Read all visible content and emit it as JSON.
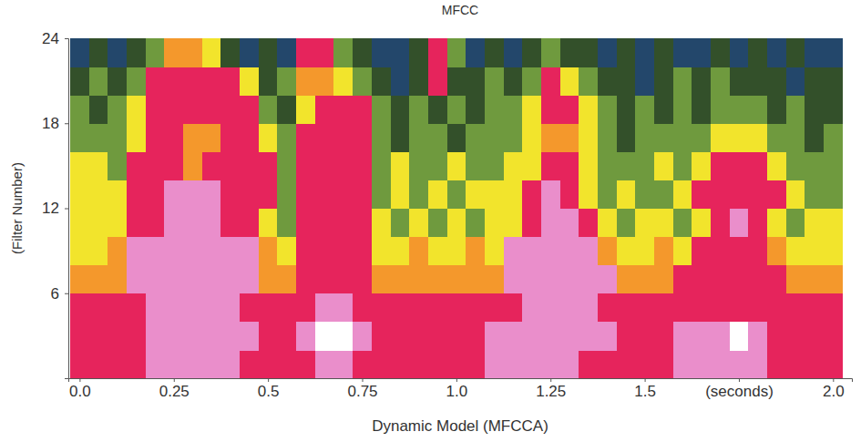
{
  "chart_data": {
    "type": "heatmap",
    "title": "MFCC",
    "y_label": "(Filter Number)",
    "x_label": "Dynamic Model (MFCCA)",
    "x": [
      0,
      0.05,
      0.1,
      0.15,
      0.2,
      0.25,
      0.3,
      0.35,
      0.4,
      0.45,
      0.5,
      0.55,
      0.6,
      0.65,
      0.7,
      0.75,
      0.8,
      0.85,
      0.9,
      0.95,
      1.0,
      1.05,
      1.1,
      1.15,
      1.2,
      1.25,
      1.3,
      1.35,
      1.4,
      1.45,
      1.5,
      1.55,
      1.6,
      1.65,
      1.7,
      1.75,
      1.8,
      1.85,
      1.9,
      1.95,
      2.0
    ],
    "y": [
      1,
      3,
      5,
      7,
      9,
      11,
      13,
      15,
      17,
      19,
      21,
      23
    ],
    "z": [
      [
        5,
        5,
        5,
        5,
        6,
        6,
        6,
        6,
        6,
        5,
        5,
        5,
        5,
        6,
        6,
        5,
        5,
        5,
        5,
        5,
        5,
        5,
        6,
        6,
        6,
        6,
        6,
        5,
        5,
        5,
        5,
        5,
        6,
        6,
        6,
        6,
        6,
        5,
        5,
        5,
        5
      ],
      [
        5,
        5,
        5,
        5,
        6,
        6,
        6,
        6,
        6,
        6,
        5,
        5,
        6,
        7,
        7,
        6,
        5,
        5,
        5,
        5,
        5,
        5,
        6,
        6,
        6,
        6,
        6,
        6,
        6,
        5,
        5,
        5,
        6,
        6,
        6,
        7,
        6,
        5,
        5,
        5,
        5
      ],
      [
        5,
        5,
        5,
        5,
        6,
        6,
        6,
        6,
        6,
        5,
        5,
        5,
        5,
        6,
        6,
        5,
        5,
        5,
        5,
        5,
        5,
        5,
        5,
        5,
        6,
        6,
        6,
        6,
        5,
        5,
        5,
        5,
        5,
        5,
        5,
        5,
        5,
        5,
        5,
        5,
        5
      ],
      [
        4,
        4,
        4,
        6,
        6,
        6,
        6,
        6,
        6,
        6,
        4,
        4,
        5,
        5,
        5,
        5,
        4,
        4,
        4,
        4,
        4,
        4,
        4,
        6,
        6,
        6,
        6,
        6,
        6,
        4,
        4,
        4,
        5,
        5,
        5,
        5,
        5,
        5,
        4,
        4,
        4
      ],
      [
        3,
        3,
        4,
        6,
        6,
        6,
        6,
        6,
        6,
        6,
        4,
        3,
        5,
        5,
        5,
        5,
        3,
        3,
        4,
        3,
        3,
        4,
        3,
        6,
        6,
        6,
        6,
        6,
        4,
        3,
        3,
        4,
        3,
        5,
        5,
        5,
        5,
        4,
        3,
        3,
        3
      ],
      [
        3,
        3,
        3,
        5,
        5,
        6,
        6,
        6,
        5,
        5,
        3,
        2,
        5,
        5,
        5,
        5,
        3,
        2,
        3,
        2,
        3,
        2,
        3,
        3,
        5,
        6,
        6,
        5,
        3,
        2,
        3,
        3,
        2,
        3,
        5,
        6,
        5,
        3,
        2,
        3,
        3
      ],
      [
        3,
        3,
        3,
        5,
        5,
        6,
        6,
        6,
        5,
        5,
        5,
        2,
        5,
        5,
        5,
        5,
        2,
        3,
        2,
        3,
        2,
        3,
        3,
        3,
        5,
        6,
        5,
        3,
        2,
        3,
        2,
        2,
        3,
        5,
        5,
        5,
        5,
        5,
        3,
        2,
        2
      ],
      [
        3,
        3,
        2,
        5,
        5,
        5,
        4,
        5,
        5,
        5,
        5,
        2,
        5,
        5,
        5,
        5,
        2,
        3,
        2,
        2,
        3,
        2,
        2,
        3,
        3,
        5,
        5,
        3,
        2,
        2,
        2,
        3,
        2,
        3,
        5,
        5,
        5,
        3,
        2,
        2,
        2
      ],
      [
        2,
        2,
        2,
        3,
        5,
        5,
        4,
        4,
        5,
        5,
        3,
        2,
        5,
        5,
        5,
        5,
        2,
        1,
        2,
        2,
        1,
        2,
        2,
        2,
        3,
        4,
        4,
        3,
        2,
        1,
        2,
        2,
        2,
        2,
        3,
        3,
        3,
        2,
        2,
        1,
        2
      ],
      [
        2,
        1,
        2,
        3,
        5,
        5,
        5,
        5,
        5,
        5,
        2,
        1,
        3,
        5,
        5,
        5,
        2,
        1,
        2,
        1,
        2,
        1,
        2,
        2,
        3,
        5,
        5,
        3,
        2,
        1,
        2,
        1,
        2,
        1,
        2,
        2,
        2,
        1,
        2,
        1,
        1
      ],
      [
        1,
        2,
        1,
        2,
        5,
        5,
        5,
        5,
        5,
        3,
        1,
        2,
        4,
        4,
        3,
        2,
        1,
        0,
        1,
        5,
        1,
        1,
        2,
        1,
        2,
        5,
        3,
        2,
        1,
        1,
        0,
        1,
        2,
        1,
        2,
        1,
        1,
        1,
        0,
        1,
        1
      ],
      [
        0,
        1,
        0,
        1,
        2,
        4,
        4,
        3,
        1,
        0,
        1,
        0,
        5,
        5,
        2,
        1,
        0,
        0,
        1,
        5,
        2,
        0,
        1,
        0,
        1,
        2,
        1,
        1,
        0,
        1,
        0,
        1,
        0,
        0,
        1,
        0,
        1,
        0,
        1,
        0,
        0
      ]
    ],
    "zlim": [
      0,
      7
    ],
    "colors": [
      "#23476b",
      "#33502a",
      "#6f9a3e",
      "#f2e42c",
      "#f4982c",
      "#e6245c",
      "#ea8ecb",
      "#ffffff"
    ],
    "xlim": [
      -0.03,
      2.05
    ],
    "ylim": [
      0,
      24
    ],
    "xticks": [
      {
        "value": 0,
        "label": "0.0"
      },
      0.25,
      0.5,
      0.75,
      {
        "value": 1,
        "label": "1.0"
      },
      1.25,
      1.5,
      {
        "value": 1.75,
        "label": "(seconds)"
      },
      {
        "value": 2,
        "label": "2.0"
      }
    ],
    "yticks": [
      6,
      12,
      18,
      24
    ]
  }
}
